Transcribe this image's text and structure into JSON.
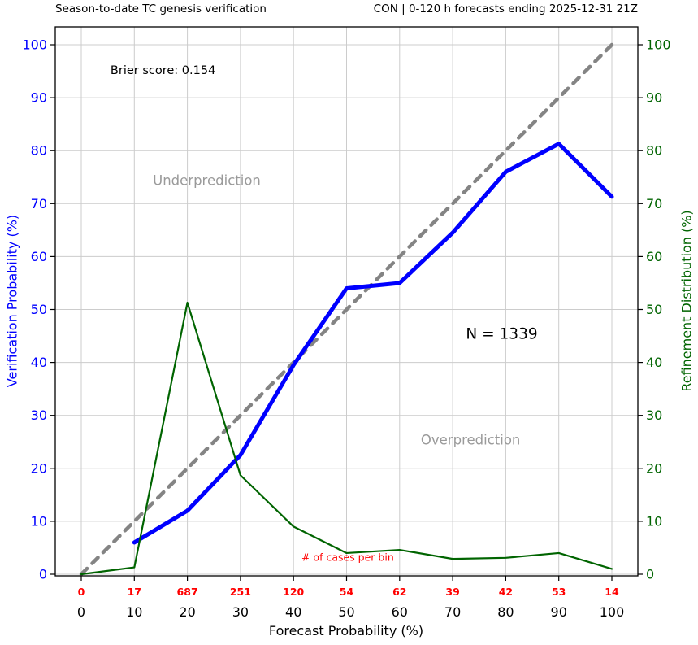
{
  "figure": {
    "title_left": "Season-to-date TC genesis verification",
    "title_right": "CON | 0-120 h forecasts ending 2025-12-31 21Z",
    "xlabel": "Forecast Probability (%)",
    "ylabel_left": "Verification Probability (%)",
    "ylabel_right": "Refinement Distribution (%)"
  },
  "chart_data": {
    "type": "line",
    "title": "Season-to-date TC genesis verification",
    "subtitle": "CON | 0-120 h forecasts ending 2025-12-31 21Z",
    "xlabel": "Forecast Probability (%)",
    "ylabel_left": "Verification Probability (%)",
    "ylabel_right": "Refinement Distribution (%)",
    "xlim": [
      0,
      100
    ],
    "ylim": [
      0,
      100
    ],
    "grid": true,
    "xticks": [
      0,
      10,
      20,
      30,
      40,
      50,
      60,
      70,
      80,
      90,
      100
    ],
    "yticks": [
      0,
      10,
      20,
      30,
      40,
      50,
      60,
      70,
      80,
      90,
      100
    ],
    "colors": {
      "left_axis": "#0000ff",
      "right_axis": "#006400",
      "grid": "#cccccc",
      "diagonal": "#848484",
      "counts": "#ff0000",
      "axis_border": "#000000"
    },
    "series": [
      {
        "name": "perfect-reliability-diagonal",
        "x": [
          0,
          100
        ],
        "values": [
          0,
          100
        ],
        "color": "#848484",
        "width": 4.5,
        "dash": "10,9"
      },
      {
        "name": "verification-probability",
        "x": [
          10,
          20,
          30,
          40,
          50,
          60,
          70,
          80,
          90,
          100
        ],
        "values": [
          6,
          12,
          22.5,
          39.5,
          54,
          55,
          64.5,
          76,
          81.3,
          71.3
        ],
        "color": "#0000ff",
        "width": 5,
        "dash": ""
      },
      {
        "name": "refinement-distribution",
        "x": [
          0,
          10,
          20,
          30,
          40,
          50,
          60,
          70,
          80,
          90,
          100
        ],
        "values": [
          0,
          1.3,
          51.3,
          18.7,
          9,
          4,
          4.6,
          2.9,
          3.1,
          4,
          1
        ],
        "color": "#006400",
        "width": 2.2,
        "dash": ""
      }
    ],
    "annotations": [
      {
        "text": "Brier score: 0.154",
        "x": 5.5,
        "y": 94.5,
        "color": "#000000",
        "size": 14.5,
        "anchor": "start"
      },
      {
        "text": "Underprediction",
        "x": 13.5,
        "y": 73.5,
        "color": "#9a9a9a",
        "size": 16.5,
        "anchor": "start"
      },
      {
        "text": "Overprediction",
        "x": 64,
        "y": 24.5,
        "color": "#9a9a9a",
        "size": 16.5,
        "anchor": "start"
      },
      {
        "text": "N = 1339",
        "x": 72.5,
        "y": 44.5,
        "color": "#000000",
        "size": 18.5,
        "anchor": "start"
      }
    ],
    "case_counts": {
      "label": "# of cases per bin",
      "label_x": 41.5,
      "label_y": 2.5,
      "values": [
        0,
        17,
        687,
        251,
        120,
        54,
        62,
        39,
        42,
        53,
        14
      ],
      "color": "#ff0000"
    }
  }
}
